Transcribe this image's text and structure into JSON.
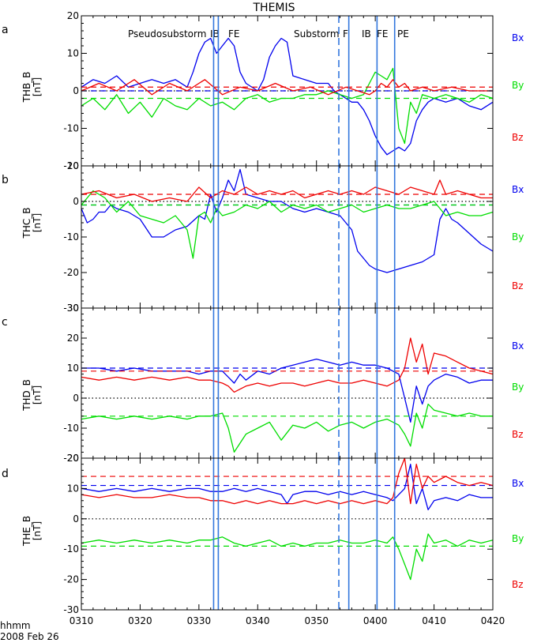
{
  "figure": {
    "title": "THEMIS",
    "time_label": "hhmm",
    "date_label": "2008 Feb 26",
    "x_ticks": [
      "0310",
      "0320",
      "0330",
      "0340",
      "0350",
      "0400",
      "0410",
      "0420"
    ],
    "event_labels": [
      "Pseudosubstorm",
      "IB",
      "FE",
      "Substorm",
      "F",
      "IB",
      "FE",
      "PE"
    ]
  },
  "colors": {
    "bx": "#0000ee",
    "by": "#00dd00",
    "bz": "#ee0000",
    "marker": "#3377dd",
    "axis": "#000000"
  },
  "chart_data": [
    {
      "type": "line",
      "panel_letter": "a",
      "ylabel_top": "THB_B",
      "ylabel_unit": "[nT]",
      "x_unit": "minutes after 03:10 UT",
      "xlim": [
        0,
        70
      ],
      "ylim": [
        -20,
        20
      ],
      "yticks": [
        -20,
        -10,
        0,
        10,
        20
      ],
      "legend": [
        "Bx",
        "By",
        "Bz"
      ],
      "markers_solid": [
        22.5,
        23.3,
        45.5,
        50.3,
        53.3
      ],
      "markers_dashed": [
        43.8
      ],
      "series": [
        {
          "name": "Bx",
          "key": "bx",
          "x": [
            0,
            2,
            4,
            6,
            8,
            10,
            12,
            14,
            16,
            18,
            19,
            20,
            21,
            22,
            23,
            24,
            25,
            26,
            27,
            28,
            30,
            31,
            32,
            33,
            34,
            35,
            36,
            38,
            40,
            42,
            43,
            44,
            45,
            46,
            47,
            48,
            49,
            50,
            51,
            52,
            53,
            54,
            55,
            56,
            57,
            58,
            59,
            60,
            62,
            64,
            66,
            68,
            70
          ],
          "values": [
            1,
            3,
            2,
            4,
            1,
            2,
            3,
            2,
            3,
            1,
            5,
            10,
            13,
            14,
            10,
            12,
            14,
            12,
            5,
            2,
            0,
            3,
            9,
            12,
            14,
            13,
            4,
            3,
            2,
            2,
            0,
            -1,
            -2,
            -3,
            -3,
            -5,
            -8,
            -12,
            -15,
            -17,
            -16,
            -15,
            -16,
            -14,
            -8,
            -5,
            -3,
            -2,
            -3,
            -2,
            -4,
            -5,
            -3
          ],
          "dash_level": 0
        },
        {
          "name": "By",
          "key": "by",
          "x": [
            0,
            2,
            4,
            6,
            8,
            10,
            12,
            14,
            16,
            18,
            20,
            22,
            24,
            26,
            28,
            30,
            32,
            34,
            36,
            38,
            40,
            42,
            44,
            46,
            48,
            49,
            50,
            51,
            52,
            53,
            54,
            55,
            56,
            57,
            58,
            60,
            62,
            64,
            66,
            68,
            70
          ],
          "values": [
            -4,
            -2,
            -5,
            -1,
            -6,
            -3,
            -7,
            -2,
            -4,
            -5,
            -2,
            -4,
            -3,
            -5,
            -2,
            -1,
            -3,
            -2,
            -2,
            -1,
            -1,
            0,
            -1,
            -2,
            -1,
            2,
            5,
            4,
            3,
            6,
            -10,
            -14,
            -3,
            -6,
            -1,
            -2,
            -1,
            -2,
            -3,
            -1,
            -2
          ],
          "dash_level": -2
        },
        {
          "name": "Bz",
          "key": "bz",
          "x": [
            0,
            3,
            6,
            9,
            12,
            15,
            18,
            21,
            24,
            27,
            30,
            33,
            36,
            39,
            42,
            45,
            47,
            49,
            50,
            51,
            52,
            53,
            54,
            55,
            56,
            58,
            60,
            63,
            66,
            70
          ],
          "values": [
            0,
            2,
            0,
            3,
            -1,
            2,
            0,
            3,
            -1,
            1,
            0,
            2,
            0,
            1,
            -1,
            1,
            0,
            -1,
            0,
            2,
            1,
            3,
            1,
            2,
            0,
            1,
            0,
            1,
            0,
            0
          ],
          "dash_level": 1
        }
      ]
    },
    {
      "type": "line",
      "panel_letter": "b",
      "ylabel_top": "THC_B",
      "ylabel_unit": "[nT]",
      "x_unit": "minutes after 03:10 UT",
      "xlim": [
        0,
        70
      ],
      "ylim": [
        -30,
        10
      ],
      "yticks": [
        -30,
        -20,
        -10,
        0,
        10
      ],
      "legend": [
        "Bx",
        "By",
        "Bz"
      ],
      "markers_solid": [
        22.5,
        23.3,
        45.5,
        50.3,
        53.3
      ],
      "markers_dashed": [
        43.8
      ],
      "series": [
        {
          "name": "Bx",
          "key": "bx",
          "x": [
            0,
            1,
            2,
            3,
            4,
            5,
            6,
            8,
            10,
            12,
            14,
            16,
            18,
            20,
            21,
            22,
            23,
            24,
            25,
            26,
            27,
            28,
            30,
            32,
            34,
            35,
            36,
            38,
            40,
            42,
            44,
            46,
            47,
            48,
            49,
            50,
            52,
            54,
            56,
            58,
            60,
            61,
            62,
            63,
            64,
            66,
            68,
            70
          ],
          "values": [
            -2,
            -6,
            -5,
            -3,
            -3,
            -1,
            -2,
            -3,
            -5,
            -10,
            -10,
            -8,
            -7,
            -4,
            -5,
            2,
            -3,
            1,
            6,
            3,
            9,
            2,
            1,
            0,
            0,
            -1,
            -2,
            -3,
            -2,
            -3,
            -4,
            -8,
            -14,
            -16,
            -18,
            -19,
            -20,
            -19,
            -18,
            -17,
            -15,
            -5,
            -2,
            -5,
            -6,
            -9,
            -12,
            -14
          ],
          "dash_level": -1
        },
        {
          "name": "By",
          "key": "by",
          "x": [
            0,
            2,
            4,
            6,
            8,
            10,
            12,
            14,
            16,
            18,
            19,
            20,
            21,
            22,
            23,
            24,
            26,
            28,
            30,
            32,
            34,
            36,
            38,
            40,
            42,
            44,
            46,
            48,
            50,
            52,
            54,
            56,
            58,
            60,
            62,
            64,
            66,
            68,
            70
          ],
          "values": [
            -1,
            3,
            1,
            -3,
            0,
            -4,
            -5,
            -6,
            -4,
            -8,
            -16,
            -4,
            -3,
            -6,
            -2,
            -4,
            -3,
            -1,
            -2,
            0,
            -3,
            -1,
            -2,
            -1,
            -3,
            -2,
            -1,
            -3,
            -2,
            -1,
            -2,
            -2,
            -1,
            0,
            -4,
            -3,
            -4,
            -4,
            -3
          ],
          "dash_level": -1
        },
        {
          "name": "Bz",
          "key": "bz",
          "x": [
            0,
            3,
            6,
            9,
            12,
            15,
            18,
            20,
            22,
            24,
            26,
            28,
            30,
            32,
            34,
            36,
            38,
            40,
            42,
            44,
            46,
            48,
            50,
            52,
            54,
            56,
            58,
            60,
            61,
            62,
            64,
            66,
            68,
            70
          ],
          "values": [
            2,
            3,
            1,
            2,
            0,
            1,
            0,
            4,
            1,
            3,
            2,
            4,
            2,
            3,
            2,
            3,
            1,
            2,
            3,
            2,
            3,
            2,
            4,
            3,
            2,
            4,
            3,
            2,
            6,
            2,
            3,
            2,
            1,
            1
          ],
          "dash_level": 2
        }
      ]
    },
    {
      "type": "line",
      "panel_letter": "c",
      "ylabel_top": "THD_B",
      "ylabel_unit": "[nT]",
      "x_unit": "minutes after 03:10 UT",
      "xlim": [
        0,
        70
      ],
      "ylim": [
        -20,
        30
      ],
      "yticks": [
        -20,
        -10,
        0,
        10,
        20,
        30
      ],
      "legend": [
        "Bx",
        "By",
        "Bz"
      ],
      "markers_solid": [
        22.5,
        23.3,
        45.5,
        50.3,
        53.3
      ],
      "markers_dashed": [
        43.8
      ],
      "series": [
        {
          "name": "Bx",
          "key": "bx",
          "x": [
            0,
            3,
            6,
            9,
            12,
            15,
            18,
            20,
            22,
            24,
            25,
            26,
            27,
            28,
            30,
            32,
            34,
            36,
            38,
            40,
            42,
            44,
            46,
            48,
            50,
            52,
            54,
            55,
            56,
            57,
            58,
            59,
            60,
            62,
            64,
            66,
            68,
            70
          ],
          "values": [
            10,
            10,
            9,
            10,
            9,
            9,
            9,
            8,
            9,
            9,
            7,
            5,
            8,
            6,
            9,
            8,
            10,
            11,
            12,
            13,
            12,
            11,
            12,
            11,
            11,
            10,
            8,
            0,
            -8,
            4,
            -2,
            4,
            6,
            8,
            7,
            5,
            6,
            6
          ],
          "dash_level": 10
        },
        {
          "name": "By",
          "key": "by",
          "x": [
            0,
            3,
            6,
            9,
            12,
            15,
            18,
            20,
            22,
            24,
            25,
            26,
            28,
            30,
            32,
            34,
            36,
            38,
            40,
            42,
            44,
            46,
            48,
            50,
            52,
            54,
            55,
            56,
            57,
            58,
            59,
            60,
            62,
            64,
            66,
            68,
            70
          ],
          "values": [
            -7,
            -6,
            -7,
            -6,
            -7,
            -6,
            -7,
            -6,
            -6,
            -5,
            -10,
            -18,
            -12,
            -10,
            -8,
            -14,
            -9,
            -10,
            -8,
            -11,
            -9,
            -8,
            -10,
            -8,
            -7,
            -9,
            -12,
            -16,
            -5,
            -10,
            -2,
            -4,
            -5,
            -6,
            -5,
            -6,
            -6
          ],
          "dash_level": -6
        },
        {
          "name": "Bz",
          "key": "bz",
          "x": [
            0,
            3,
            6,
            9,
            12,
            15,
            18,
            20,
            22,
            24,
            25,
            26,
            28,
            30,
            32,
            34,
            36,
            38,
            40,
            42,
            44,
            46,
            48,
            50,
            52,
            54,
            55,
            56,
            57,
            58,
            59,
            60,
            62,
            64,
            66,
            68,
            70
          ],
          "values": [
            7,
            6,
            7,
            6,
            7,
            6,
            7,
            6,
            6,
            5,
            4,
            2,
            4,
            5,
            4,
            5,
            5,
            4,
            5,
            6,
            5,
            5,
            6,
            5,
            4,
            6,
            10,
            20,
            12,
            18,
            8,
            15,
            14,
            12,
            10,
            9,
            8
          ],
          "dash_level": 9
        }
      ]
    },
    {
      "type": "line",
      "panel_letter": "d",
      "ylabel_top": "THE_B",
      "ylabel_unit": "[nT]",
      "x_unit": "minutes after 03:10 UT",
      "xlim": [
        0,
        70
      ],
      "ylim": [
        -30,
        20
      ],
      "yticks": [
        -30,
        -20,
        -10,
        0,
        10,
        20
      ],
      "legend": [
        "Bx",
        "By",
        "Bz"
      ],
      "markers_solid": [
        22.5,
        23.3,
        45.5,
        50.3,
        53.3
      ],
      "markers_dashed": [
        43.8
      ],
      "series": [
        {
          "name": "Bx",
          "key": "bx",
          "x": [
            0,
            3,
            6,
            9,
            12,
            15,
            18,
            20,
            22,
            24,
            26,
            28,
            30,
            32,
            34,
            35,
            36,
            38,
            40,
            42,
            44,
            46,
            48,
            50,
            52,
            53,
            54,
            55,
            56,
            57,
            58,
            59,
            60,
            62,
            64,
            66,
            68,
            70
          ],
          "values": [
            10,
            9,
            10,
            9,
            10,
            9,
            10,
            10,
            9,
            9,
            10,
            9,
            10,
            9,
            8,
            5,
            8,
            9,
            9,
            8,
            9,
            8,
            9,
            8,
            7,
            6,
            8,
            10,
            18,
            5,
            10,
            3,
            6,
            7,
            6,
            8,
            7,
            7
          ],
          "dash_level": 11
        },
        {
          "name": "By",
          "key": "by",
          "x": [
            0,
            3,
            6,
            9,
            12,
            15,
            18,
            20,
            22,
            24,
            26,
            28,
            30,
            32,
            34,
            36,
            38,
            40,
            42,
            44,
            46,
            48,
            50,
            52,
            53,
            54,
            55,
            56,
            57,
            58,
            59,
            60,
            62,
            64,
            66,
            68,
            70
          ],
          "values": [
            -8,
            -7,
            -8,
            -7,
            -8,
            -7,
            -8,
            -7,
            -7,
            -6,
            -8,
            -9,
            -8,
            -7,
            -9,
            -8,
            -9,
            -8,
            -8,
            -7,
            -8,
            -8,
            -7,
            -8,
            -6,
            -10,
            -15,
            -20,
            -10,
            -14,
            -5,
            -8,
            -7,
            -9,
            -7,
            -8,
            -7
          ],
          "dash_level": -9
        },
        {
          "name": "Bz",
          "key": "bz",
          "x": [
            0,
            3,
            6,
            9,
            12,
            15,
            18,
            20,
            22,
            24,
            26,
            28,
            30,
            32,
            34,
            36,
            38,
            40,
            42,
            44,
            46,
            48,
            50,
            52,
            53,
            54,
            55,
            56,
            57,
            58,
            59,
            60,
            62,
            64,
            66,
            68,
            70
          ],
          "values": [
            8,
            7,
            8,
            7,
            7,
            8,
            7,
            7,
            6,
            6,
            5,
            6,
            5,
            6,
            5,
            5,
            6,
            5,
            6,
            5,
            6,
            5,
            6,
            5,
            7,
            15,
            20,
            5,
            18,
            10,
            14,
            12,
            14,
            12,
            11,
            12,
            11
          ],
          "dash_level": 14
        }
      ]
    }
  ]
}
